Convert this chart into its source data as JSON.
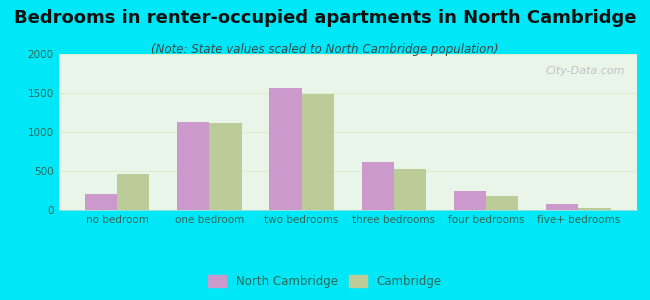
{
  "title": "Bedrooms in renter-occupied apartments in North Cambridge",
  "subtitle": "(Note: State values scaled to North Cambridge population)",
  "categories": [
    "no bedroom",
    "one bedroom",
    "two bedrooms",
    "three bedrooms",
    "four bedrooms",
    "five+ bedrooms"
  ],
  "north_cambridge": [
    200,
    1130,
    1570,
    615,
    240,
    75
  ],
  "cambridge": [
    460,
    1115,
    1490,
    520,
    185,
    30
  ],
  "nc_color": "#cc99cc",
  "cambridge_color": "#bbcc99",
  "background_outer": "#00e8f8",
  "background_inner": "#eaf5ea",
  "ylim": [
    0,
    2000
  ],
  "yticks": [
    0,
    500,
    1000,
    1500,
    2000
  ],
  "bar_width": 0.35,
  "legend_nc": "North Cambridge",
  "legend_cam": "Cambridge",
  "title_fontsize": 13,
  "subtitle_fontsize": 8.5,
  "tick_fontsize": 7.5
}
